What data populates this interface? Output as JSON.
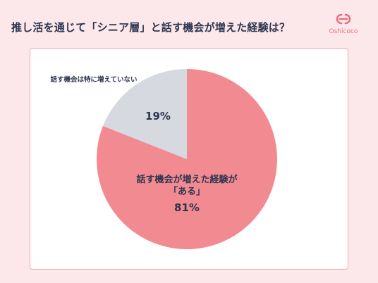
{
  "title": "推し活を通じて「シニア層」と話す機会が増えた経験は？",
  "brand": {
    "name": "Oshicoco",
    "color": "#e8707d"
  },
  "chart_data": {
    "type": "pie",
    "slices": [
      {
        "label_lines": [
          "話す機会が増えた経験が",
          "「ある」"
        ],
        "value": 81,
        "value_label": "81%",
        "color": "#f28b91"
      },
      {
        "label_lines": [
          "話す機会は特に増えていない"
        ],
        "value": 19,
        "value_label": "19%",
        "color": "#d6d9e0"
      }
    ]
  }
}
